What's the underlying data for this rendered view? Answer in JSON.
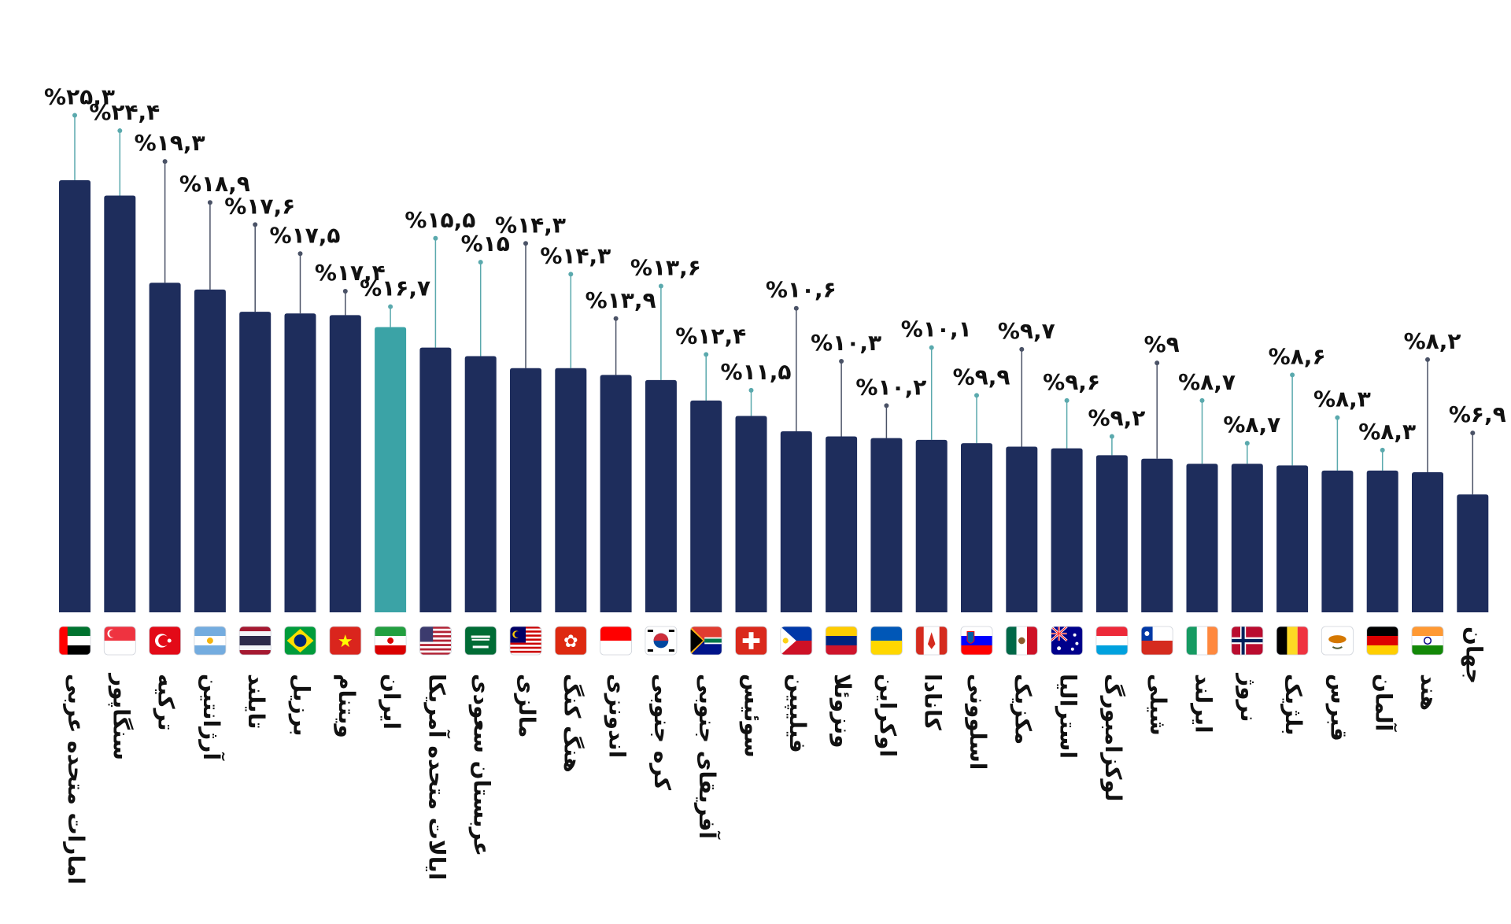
{
  "chart_data": {
    "type": "bar",
    "title": "",
    "xlabel": "",
    "ylabel": "",
    "ylim": [
      0,
      26.5
    ],
    "highlight_index": 7,
    "colors": {
      "bar": "#1e2d5c",
      "highlight": "#3ba3a6",
      "stem_dark": "#4a5266",
      "stem_teal": "#5aa9ad"
    },
    "categories": [
      "امارات متحده عربی",
      "سنگاپور",
      "ترکیه",
      "آرژانتین",
      "تایلند",
      "برزیل",
      "ویتنام",
      "ایران",
      "ایالات متحده آمریکا",
      "عربستان سعودی",
      "مالزی",
      "هنگ کنگ",
      "اندونزی",
      "کره جنوبی",
      "آفریقای جنوبی",
      "سوئیس",
      "فیلیپین",
      "ونزوئلا",
      "اوکراین",
      "کانادا",
      "اسلوونی",
      "مکزیک",
      "استرالیا",
      "لوکزامبورگ",
      "شیلی",
      "ایرلند",
      "نروژ",
      "بلژیک",
      "قبرس",
      "آلمان",
      "هند",
      "جهان"
    ],
    "values": [
      25.3,
      24.4,
      19.3,
      18.9,
      17.6,
      17.5,
      17.4,
      16.7,
      15.5,
      15,
      14.3,
      14.3,
      13.9,
      13.6,
      12.4,
      11.5,
      10.6,
      10.3,
      10.2,
      10.1,
      9.9,
      9.7,
      9.6,
      9.2,
      9,
      8.7,
      8.7,
      8.6,
      8.3,
      8.3,
      8.2,
      6.9
    ],
    "value_labels": [
      "%۲۵,۳",
      "%۲۴,۴",
      "%۱۹,۳",
      "%۱۸,۹",
      "%۱۷,۶",
      "%۱۷,۵",
      "%۱۷,۴",
      "%۱۶,۷",
      "%۱۵,۵",
      "%۱۵",
      "%۱۴,۳",
      "%۱۴,۳",
      "%۱۳,۹",
      "%۱۳,۶",
      "%۱۲,۴",
      "%۱۱,۵",
      "%۱۰,۶",
      "%۱۰,۳",
      "%۱۰,۲",
      "%۱۰,۱",
      "%۹,۹",
      "%۹,۷",
      "%۹,۶",
      "%۹,۲",
      "%۹",
      "%۸,۷",
      "%۸,۷",
      "%۸,۶",
      "%۸,۳",
      "%۸,۳",
      "%۸,۲",
      "%۶,۹"
    ],
    "label_offsets": [
      3.8,
      3.8,
      7.1,
      5.1,
      5.1,
      3.5,
      1.4,
      1.2,
      6.4,
      5.5,
      7.3,
      5.5,
      3.3,
      5.5,
      2.7,
      1.5,
      7.2,
      4.4,
      1.9,
      5.4,
      2.8,
      5.7,
      2.8,
      1.1,
      5.6,
      3.7,
      1.2,
      5.3,
      3.1,
      1.2,
      6.6,
      3.6
    ],
    "stem_styles": [
      "teal",
      "teal",
      "dark",
      "dark",
      "dark",
      "dark",
      "dark",
      "teal",
      "teal",
      "teal",
      "dark",
      "teal",
      "dark",
      "teal",
      "teal",
      "teal",
      "dark",
      "dark",
      "dark",
      "teal",
      "teal",
      "dark",
      "teal",
      "teal",
      "dark",
      "teal",
      "teal",
      "teal",
      "teal",
      "teal",
      "dark",
      "dark"
    ],
    "flags": [
      "uae-flag-icon",
      "singapore-flag-icon",
      "turkey-flag-icon",
      "argentina-flag-icon",
      "thailand-flag-icon",
      "brazil-flag-icon",
      "vietnam-flag-icon",
      "iran-flag-icon",
      "usa-flag-icon",
      "saudi-arabia-flag-icon",
      "malaysia-flag-icon",
      "hong-kong-flag-icon",
      "indonesia-flag-icon",
      "south-korea-flag-icon",
      "south-africa-flag-icon",
      "switzerland-flag-icon",
      "philippines-flag-icon",
      "venezuela-flag-icon",
      "ukraine-flag-icon",
      "canada-flag-icon",
      "slovenia-flag-icon",
      "mexico-flag-icon",
      "australia-flag-icon",
      "luxembourg-flag-icon",
      "chile-flag-icon",
      "ireland-flag-icon",
      "norway-flag-icon",
      "belgium-flag-icon",
      "cyprus-flag-icon",
      "germany-flag-icon",
      "india-flag-icon",
      "world-empty-icon"
    ],
    "grid": false,
    "legend": "none"
  }
}
